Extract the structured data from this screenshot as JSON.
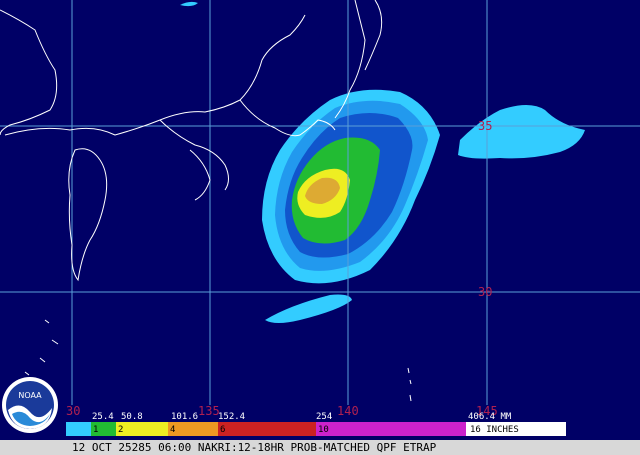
{
  "map": {
    "lat_labels": [
      "35",
      "30"
    ],
    "lon_labels": [
      "30",
      "135",
      "140",
      "145"
    ]
  },
  "legend": {
    "mm_labels": [
      "25.4",
      "50.8",
      "101.6",
      "152.4",
      "254",
      "406.4 MM"
    ],
    "inch_labels": [
      "1",
      "2",
      "4",
      "6",
      "10",
      "16 INCHES"
    ]
  },
  "logo": "NOAA",
  "footer": "12 OCT 25285 06:00 NAKRI:12-18HR PROB-MATCHED QPF ETRAP"
}
